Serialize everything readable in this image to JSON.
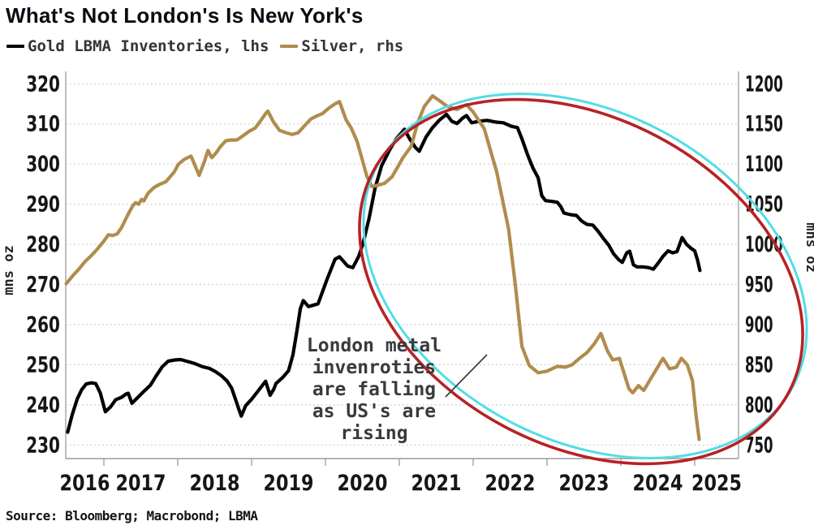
{
  "header": {
    "title": "What's Not London's Is New York's",
    "legend": [
      {
        "label": "Gold LBMA Inventories, lhs",
        "color": "#000000"
      },
      {
        "label": "Silver, rhs",
        "color": "#b08c4e"
      }
    ]
  },
  "footer": {
    "source": "Source: Bloomberg; Macrobond; LBMA"
  },
  "colors": {
    "gold_line": "#000000",
    "silver_line": "#b08c4e",
    "ellipse_red": "#b72226",
    "ellipse_cyan": "#52dde4",
    "grid": "#c6c6c6",
    "axis": "#9b9b9b",
    "annotation_text": "#3a3a3a",
    "callout_line": "#3c3c3c"
  },
  "chart_data": {
    "type": "line",
    "title": "What's Not London's Is New York's",
    "x_axis": {
      "years": [
        2016,
        2017,
        2018,
        2019,
        2020,
        2021,
        2022,
        2023,
        2024,
        2025
      ],
      "range": [
        2016.48,
        2025.6
      ]
    },
    "y_axis_left": {
      "label": "mns oz",
      "ticks": [
        320,
        310,
        300,
        290,
        280,
        270,
        260,
        250,
        240,
        230
      ],
      "range": [
        230,
        320
      ]
    },
    "y_axis_right": {
      "label": "mns oz",
      "ticks": [
        1200,
        1150,
        1100,
        1050,
        1000,
        950,
        900,
        850,
        800,
        750
      ],
      "range": [
        750,
        1200
      ]
    },
    "grid": "dotted-horizontal",
    "legend_position": "top-left",
    "series": [
      {
        "name": "Gold LBMA Inventories, lhs",
        "axis": "left",
        "color": "#000000",
        "points": [
          [
            2016.51,
            233.2
          ],
          [
            2016.57,
            237.5
          ],
          [
            2016.64,
            241.5
          ],
          [
            2016.7,
            243.8
          ],
          [
            2016.76,
            245.2
          ],
          [
            2016.83,
            245.5
          ],
          [
            2016.89,
            245.3
          ],
          [
            2016.95,
            243.0
          ],
          [
            2017.02,
            238.3
          ],
          [
            2017.09,
            239.5
          ],
          [
            2017.16,
            241.3
          ],
          [
            2017.24,
            241.9
          ],
          [
            2017.3,
            242.7
          ],
          [
            2017.33,
            242.9
          ],
          [
            2017.38,
            240.4
          ],
          [
            2017.46,
            241.9
          ],
          [
            2017.55,
            243.5
          ],
          [
            2017.63,
            244.9
          ],
          [
            2017.71,
            247.3
          ],
          [
            2017.79,
            249.5
          ],
          [
            2017.87,
            250.9
          ],
          [
            2017.96,
            251.2
          ],
          [
            2018.04,
            251.3
          ],
          [
            2018.12,
            250.9
          ],
          [
            2018.23,
            250.3
          ],
          [
            2018.34,
            249.5
          ],
          [
            2018.43,
            249.1
          ],
          [
            2018.51,
            248.3
          ],
          [
            2018.59,
            247.3
          ],
          [
            2018.67,
            245.9
          ],
          [
            2018.73,
            244.2
          ],
          [
            2018.78,
            241.5
          ],
          [
            2018.83,
            238.8
          ],
          [
            2018.86,
            237.2
          ],
          [
            2018.92,
            239.8
          ],
          [
            2019.0,
            241.4
          ],
          [
            2019.09,
            243.5
          ],
          [
            2019.19,
            245.9
          ],
          [
            2019.25,
            242.4
          ],
          [
            2019.3,
            243.9
          ],
          [
            2019.33,
            245.3
          ],
          [
            2019.42,
            246.8
          ],
          [
            2019.5,
            248.5
          ],
          [
            2019.56,
            252.5
          ],
          [
            2019.61,
            258.0
          ],
          [
            2019.66,
            264.0
          ],
          [
            2019.7,
            266.0
          ],
          [
            2019.77,
            264.5
          ],
          [
            2019.83,
            264.8
          ],
          [
            2019.9,
            265.2
          ],
          [
            2020.02,
            271.2
          ],
          [
            2020.13,
            276.3
          ],
          [
            2020.19,
            276.9
          ],
          [
            2020.3,
            274.6
          ],
          [
            2020.37,
            274.2
          ],
          [
            2020.45,
            277.0
          ],
          [
            2020.51,
            280.3
          ],
          [
            2020.59,
            286.4
          ],
          [
            2020.67,
            293.9
          ],
          [
            2020.76,
            299.6
          ],
          [
            2020.87,
            303.6
          ],
          [
            2020.96,
            306.3
          ],
          [
            2021.07,
            308.7
          ],
          [
            2021.14,
            306.3
          ],
          [
            2021.22,
            304.1
          ],
          [
            2021.27,
            303.2
          ],
          [
            2021.36,
            306.7
          ],
          [
            2021.45,
            309.1
          ],
          [
            2021.54,
            310.9
          ],
          [
            2021.64,
            312.4
          ],
          [
            2021.71,
            310.7
          ],
          [
            2021.78,
            310.1
          ],
          [
            2021.86,
            311.5
          ],
          [
            2021.91,
            312.1
          ],
          [
            2021.98,
            310.3
          ],
          [
            2022.08,
            310.7
          ],
          [
            2022.19,
            310.9
          ],
          [
            2022.3,
            310.5
          ],
          [
            2022.41,
            310.3
          ],
          [
            2022.52,
            309.4
          ],
          [
            2022.6,
            309.1
          ],
          [
            2022.66,
            306.3
          ],
          [
            2022.74,
            302.2
          ],
          [
            2022.81,
            299.0
          ],
          [
            2022.88,
            296.6
          ],
          [
            2022.93,
            292.1
          ],
          [
            2022.98,
            290.9
          ],
          [
            2023.07,
            290.7
          ],
          [
            2023.14,
            290.5
          ],
          [
            2023.19,
            289.3
          ],
          [
            2023.23,
            287.8
          ],
          [
            2023.32,
            287.4
          ],
          [
            2023.4,
            287.2
          ],
          [
            2023.47,
            285.8
          ],
          [
            2023.54,
            285.0
          ],
          [
            2023.62,
            284.8
          ],
          [
            2023.69,
            283.3
          ],
          [
            2023.77,
            281.3
          ],
          [
            2023.84,
            279.7
          ],
          [
            2023.9,
            277.7
          ],
          [
            2023.97,
            276.2
          ],
          [
            2024.02,
            275.5
          ],
          [
            2024.08,
            277.9
          ],
          [
            2024.12,
            278.3
          ],
          [
            2024.17,
            274.9
          ],
          [
            2024.22,
            274.4
          ],
          [
            2024.3,
            274.4
          ],
          [
            2024.38,
            274.2
          ],
          [
            2024.44,
            273.8
          ],
          [
            2024.5,
            275.2
          ],
          [
            2024.57,
            277.0
          ],
          [
            2024.64,
            278.4
          ],
          [
            2024.7,
            277.9
          ],
          [
            2024.76,
            278.2
          ],
          [
            2024.83,
            281.7
          ],
          [
            2024.89,
            280.0
          ],
          [
            2024.95,
            279.0
          ],
          [
            2025.0,
            278.4
          ],
          [
            2025.04,
            276.0
          ],
          [
            2025.07,
            273.5
          ]
        ]
      },
      {
        "name": "Silver, rhs",
        "axis": "right",
        "color": "#b08c4e",
        "points": [
          [
            2016.49,
            951
          ],
          [
            2016.58,
            961
          ],
          [
            2016.66,
            969
          ],
          [
            2016.74,
            978
          ],
          [
            2016.83,
            986
          ],
          [
            2016.91,
            994
          ],
          [
            2017.0,
            1004
          ],
          [
            2017.06,
            1012
          ],
          [
            2017.12,
            1011
          ],
          [
            2017.18,
            1013
          ],
          [
            2017.24,
            1021
          ],
          [
            2017.32,
            1036
          ],
          [
            2017.39,
            1048
          ],
          [
            2017.43,
            1052
          ],
          [
            2017.47,
            1050
          ],
          [
            2017.51,
            1056
          ],
          [
            2017.54,
            1054
          ],
          [
            2017.6,
            1064
          ],
          [
            2017.68,
            1071
          ],
          [
            2017.76,
            1075
          ],
          [
            2017.84,
            1078
          ],
          [
            2017.95,
            1090
          ],
          [
            2018.01,
            1100
          ],
          [
            2018.09,
            1106
          ],
          [
            2018.18,
            1110
          ],
          [
            2018.24,
            1097
          ],
          [
            2018.29,
            1086
          ],
          [
            2018.36,
            1103
          ],
          [
            2018.41,
            1117
          ],
          [
            2018.46,
            1108
          ],
          [
            2018.52,
            1114
          ],
          [
            2018.58,
            1122
          ],
          [
            2018.65,
            1129
          ],
          [
            2018.72,
            1130
          ],
          [
            2018.8,
            1130
          ],
          [
            2018.88,
            1135
          ],
          [
            2018.97,
            1141
          ],
          [
            2019.05,
            1145
          ],
          [
            2019.13,
            1155
          ],
          [
            2019.19,
            1163
          ],
          [
            2019.22,
            1166
          ],
          [
            2019.3,
            1152
          ],
          [
            2019.38,
            1142
          ],
          [
            2019.47,
            1139
          ],
          [
            2019.55,
            1137
          ],
          [
            2019.63,
            1139
          ],
          [
            2019.72,
            1148
          ],
          [
            2019.8,
            1156
          ],
          [
            2019.88,
            1160
          ],
          [
            2019.96,
            1163
          ],
          [
            2020.05,
            1170
          ],
          [
            2020.13,
            1175
          ],
          [
            2020.19,
            1178
          ],
          [
            2020.28,
            1155
          ],
          [
            2020.35,
            1145
          ],
          [
            2020.43,
            1128
          ],
          [
            2020.5,
            1105
          ],
          [
            2020.56,
            1085
          ],
          [
            2020.63,
            1072
          ],
          [
            2020.72,
            1074
          ],
          [
            2020.8,
            1076
          ],
          [
            2020.9,
            1084
          ],
          [
            2020.97,
            1095
          ],
          [
            2021.05,
            1108
          ],
          [
            2021.16,
            1122
          ],
          [
            2021.25,
            1152
          ],
          [
            2021.34,
            1172
          ],
          [
            2021.45,
            1185
          ],
          [
            2021.56,
            1178
          ],
          [
            2021.65,
            1172
          ],
          [
            2021.78,
            1168
          ],
          [
            2021.91,
            1174
          ],
          [
            2022.0,
            1165
          ],
          [
            2022.15,
            1144
          ],
          [
            2022.32,
            1090
          ],
          [
            2022.48,
            1019
          ],
          [
            2022.57,
            950
          ],
          [
            2022.66,
            873
          ],
          [
            2022.76,
            849
          ],
          [
            2022.88,
            840
          ],
          [
            2023.0,
            842
          ],
          [
            2023.14,
            848
          ],
          [
            2023.25,
            847
          ],
          [
            2023.34,
            850
          ],
          [
            2023.44,
            858
          ],
          [
            2023.54,
            865
          ],
          [
            2023.64,
            876
          ],
          [
            2023.73,
            889
          ],
          [
            2023.82,
            867
          ],
          [
            2023.89,
            856
          ],
          [
            2023.98,
            858
          ],
          [
            2024.11,
            820
          ],
          [
            2024.16,
            815
          ],
          [
            2024.24,
            824
          ],
          [
            2024.31,
            818
          ],
          [
            2024.44,
            838
          ],
          [
            2024.57,
            858
          ],
          [
            2024.66,
            845
          ],
          [
            2024.75,
            847
          ],
          [
            2024.82,
            858
          ],
          [
            2024.9,
            850
          ],
          [
            2024.97,
            830
          ],
          [
            2025.02,
            786
          ],
          [
            2025.06,
            757
          ]
        ]
      }
    ],
    "annotations": {
      "ellipse": {
        "stroke": "#b72226",
        "shadow_stroke": "#52dde4"
      },
      "callout_text_lines": [
        "London metal",
        "invenroties",
        "are falling",
        "as US's are",
        "rising"
      ]
    }
  }
}
